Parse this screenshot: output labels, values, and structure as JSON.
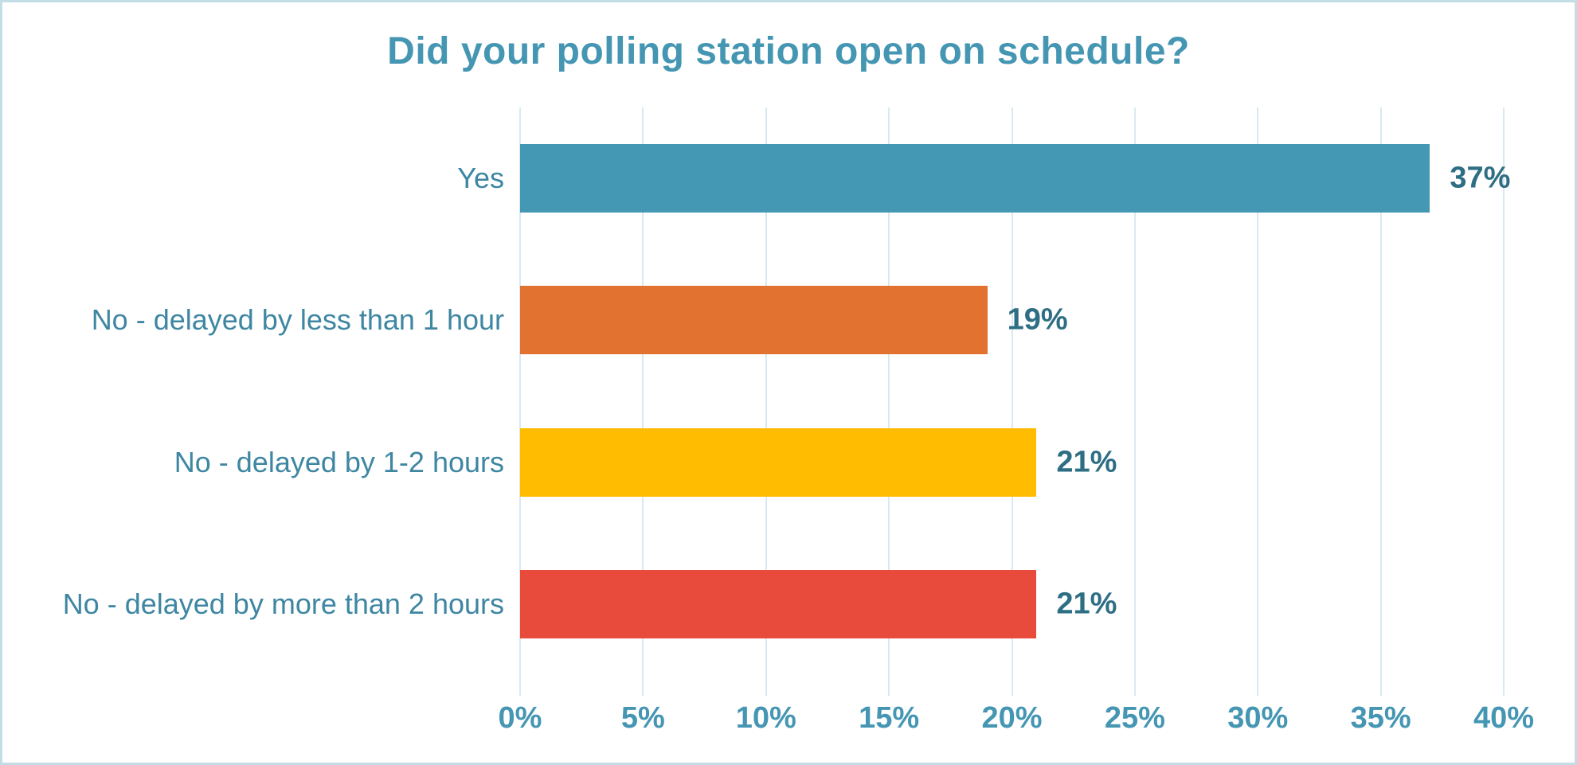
{
  "chart_data": {
    "type": "bar",
    "orientation": "horizontal",
    "title": "Did your polling station open on schedule?",
    "categories": [
      "Yes",
      "No - delayed by less than 1 hour",
      "No - delayed by 1-2 hours",
      "No - delayed by more than 2 hours"
    ],
    "values": [
      37,
      19,
      21,
      21
    ],
    "data_labels": [
      "37%",
      "19%",
      "21%",
      "21%"
    ],
    "bar_colors": [
      "#4498B4",
      "#E2722F",
      "#FFBC00",
      "#E84B3C"
    ],
    "x_ticks": [
      "0%",
      "5%",
      "10%",
      "15%",
      "20%",
      "25%",
      "30%",
      "35%",
      "40%"
    ],
    "x_tick_values": [
      0,
      5,
      10,
      15,
      20,
      25,
      30,
      35,
      40
    ],
    "xlim": [
      0,
      40
    ],
    "xlabel": "",
    "ylabel": "",
    "grid": true,
    "legend_position": "none"
  },
  "colors": {
    "background": "#FFFFFF",
    "border": "#C3DDE7",
    "title_text": "#4596B3",
    "category_text": "#3E86A2",
    "data_label_text": "#2E6E84",
    "tick_text": "#4596B3",
    "gridline": "#D8EAF1"
  }
}
